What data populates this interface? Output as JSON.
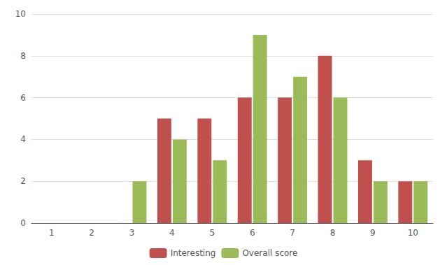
{
  "chart_data": {
    "type": "bar",
    "categories": [
      1,
      2,
      3,
      4,
      5,
      6,
      7,
      8,
      9,
      10
    ],
    "series": [
      {
        "name": "Interesting",
        "color": "#c0504d",
        "values": [
          0,
          0,
          0,
          5,
          5,
          6,
          6,
          8,
          3,
          2
        ]
      },
      {
        "name": "Overall score",
        "color": "#9bbb59",
        "values": [
          0,
          0,
          2,
          4,
          3,
          9,
          7,
          6,
          2,
          2
        ]
      }
    ],
    "ylim": [
      0,
      10
    ],
    "yticks": [
      0,
      2,
      4,
      6,
      8,
      10
    ],
    "grid": true,
    "legend": "bottom"
  }
}
